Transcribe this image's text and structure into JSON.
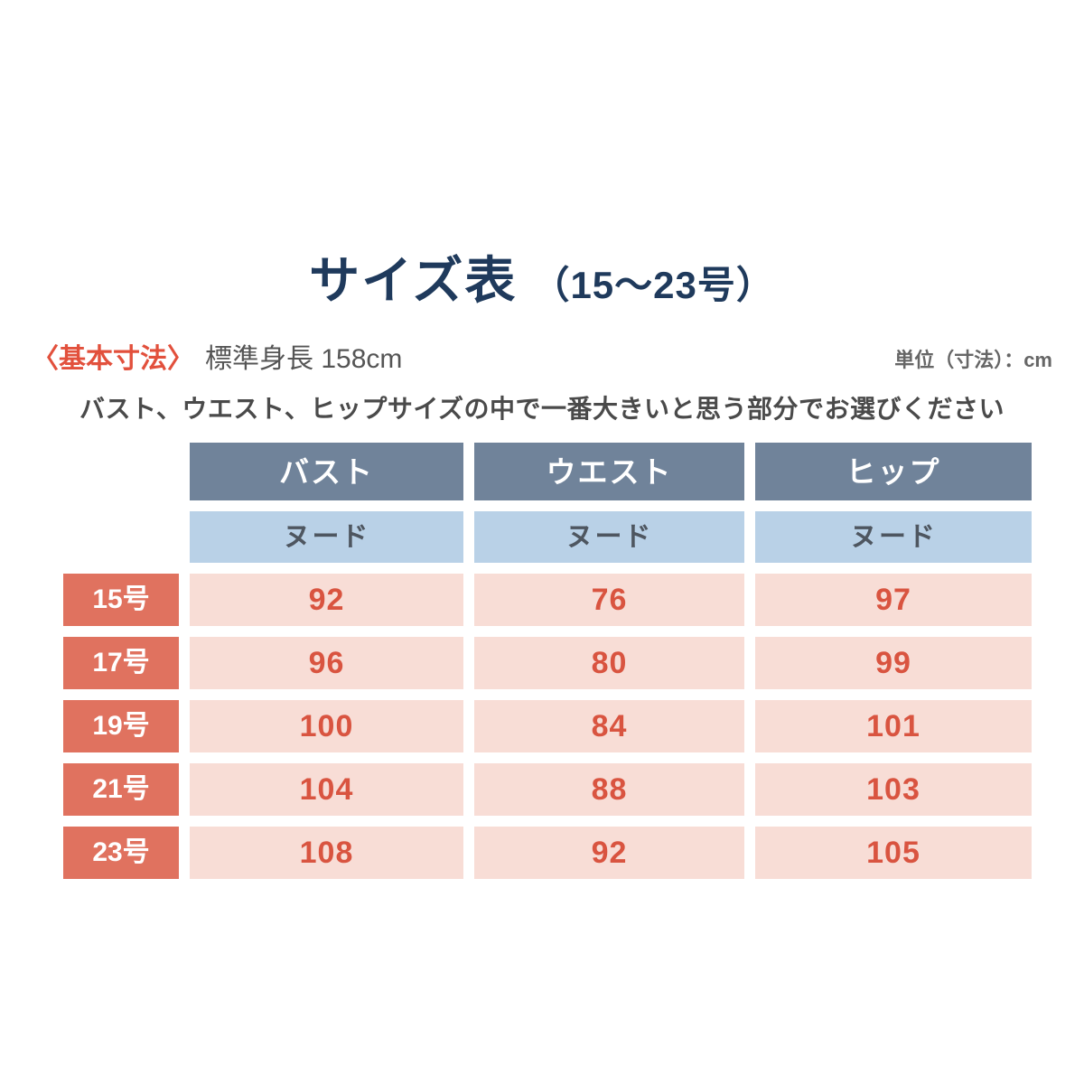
{
  "page": {
    "title": "サイズ表",
    "title_suffix": "（15〜23号）",
    "basic_label": "〈基本寸法〉",
    "basic_value": "標準身長 158cm",
    "unit_note": "単位（寸法）：cm",
    "instruction": "バスト、ウエスト、ヒップサイズの中で一番大きいと思う部分でお選びください"
  },
  "table": {
    "columns": [
      {
        "label": "バスト",
        "sub": "ヌード"
      },
      {
        "label": "ウエスト",
        "sub": "ヌード"
      },
      {
        "label": "ヒップ",
        "sub": "ヌード"
      }
    ],
    "rows": [
      {
        "size": "15号",
        "values": [
          "92",
          "76",
          "97"
        ]
      },
      {
        "size": "17号",
        "values": [
          "96",
          "80",
          "99"
        ]
      },
      {
        "size": "19号",
        "values": [
          "100",
          "84",
          "101"
        ]
      },
      {
        "size": "21号",
        "values": [
          "104",
          "88",
          "103"
        ]
      },
      {
        "size": "23号",
        "values": [
          "108",
          "92",
          "105"
        ]
      }
    ]
  },
  "chart_data": {
    "type": "table",
    "title": "サイズ表（15〜23号）",
    "unit": "cm",
    "standard_height_cm": 158,
    "columns": [
      "バスト（ヌード）",
      "ウエスト（ヌード）",
      "ヒップ（ヌード）"
    ],
    "row_labels": [
      "15号",
      "17号",
      "19号",
      "21号",
      "23号"
    ],
    "values": [
      [
        92,
        76,
        97
      ],
      [
        96,
        80,
        99
      ],
      [
        100,
        84,
        101
      ],
      [
        104,
        88,
        103
      ],
      [
        108,
        92,
        105
      ]
    ]
  },
  "colors": {
    "title_navy": "#1f3a5c",
    "accent_red": "#e2503c",
    "header_slate": "#70839a",
    "subheader_blue": "#b9d1e7",
    "row_label_salmon": "#e0725f",
    "cell_pink": "#f8ddd6",
    "value_red": "#d95440",
    "body_gray": "#4a4a4a",
    "unit_gray": "#666666"
  }
}
